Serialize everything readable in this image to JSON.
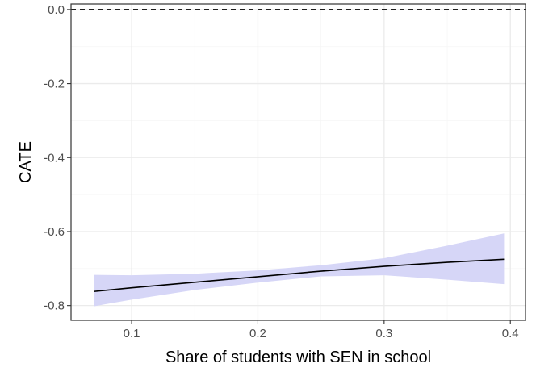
{
  "chart_data": {
    "type": "line",
    "title": "",
    "xlabel": "Share of students with SEN in school",
    "ylabel": "CATE",
    "xlim": [
      0.052,
      0.412
    ],
    "ylim": [
      -0.84,
      0.015
    ],
    "x_ticks": [
      0.1,
      0.2,
      0.3,
      0.4
    ],
    "x_tick_labels": [
      "0.1",
      "0.2",
      "0.3",
      "0.4"
    ],
    "y_ticks": [
      -0.8,
      -0.6,
      -0.4,
      -0.2,
      0.0
    ],
    "y_tick_labels": [
      "-0.8",
      "-0.6",
      "-0.4",
      "-0.2",
      "0.0"
    ],
    "grid": true,
    "legend": "none",
    "reference_line": {
      "y": 0.0,
      "style": "dashed"
    },
    "series": [
      {
        "x": [
          0.07,
          0.1,
          0.15,
          0.2,
          0.25,
          0.3,
          0.35,
          0.395
        ],
        "y": [
          -0.762,
          -0.752,
          -0.737,
          -0.722,
          -0.707,
          -0.694,
          -0.683,
          -0.675
        ],
        "lower": [
          -0.802,
          -0.784,
          -0.758,
          -0.738,
          -0.721,
          -0.718,
          -0.73,
          -0.742
        ],
        "upper": [
          -0.717,
          -0.718,
          -0.714,
          -0.705,
          -0.691,
          -0.672,
          -0.638,
          -0.605
        ]
      }
    ],
    "colors": {
      "line": "#000000",
      "ribbon": "#d6d6f7",
      "panel_border": "#333333",
      "grid_major": "#ebebeb",
      "grid_minor": "#f5f5f5",
      "zero_line": "#000000"
    }
  }
}
